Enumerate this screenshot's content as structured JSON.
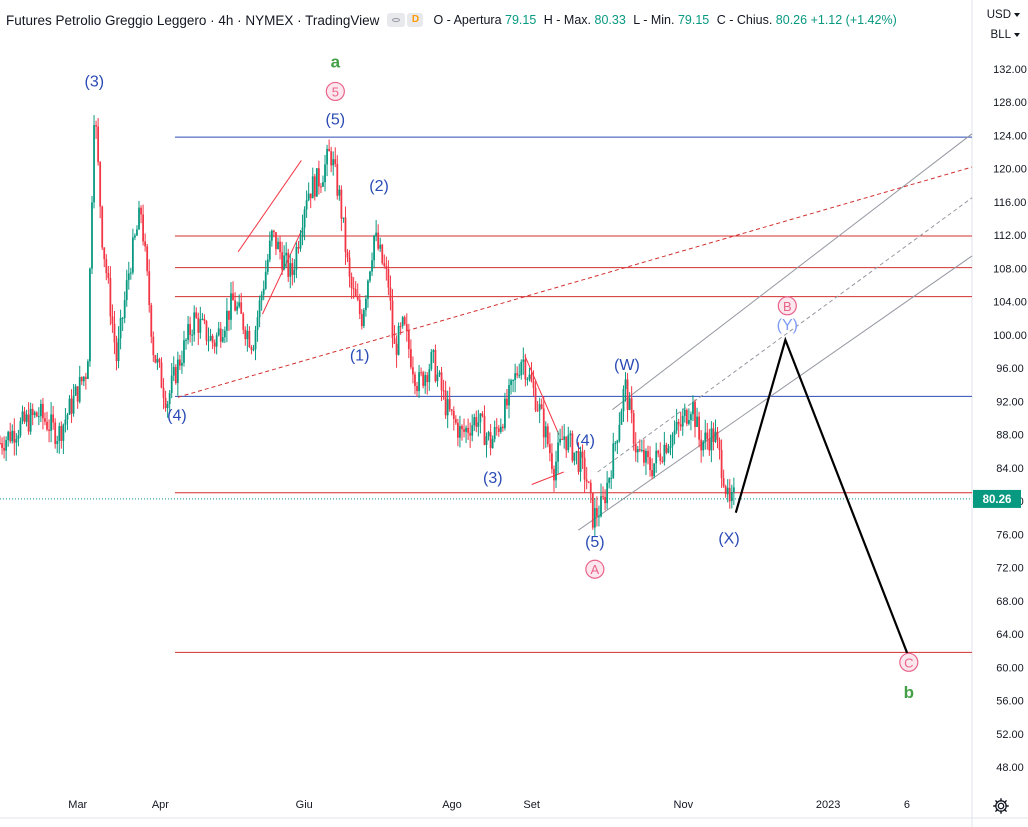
{
  "header": {
    "title": "Futures Petrolio Greggio Leggero · 4h · NYMEX · TradingView",
    "d_badge": "D",
    "open_label": "O - Apertura",
    "open_value": "79.15",
    "high_label": "H - Max.",
    "high_value": "80.33",
    "low_label": "L - Min.",
    "low_value": "79.15",
    "close_label": "C - Chius.",
    "close_value": "80.26",
    "change": "+1.12 (+1.42%)"
  },
  "scale": {
    "currency": "USD",
    "unit": "BLL"
  },
  "colors": {
    "up": "#089981",
    "down": "#f23645",
    "blue_label": "#2a4bb5",
    "pink_label": "#e8638a",
    "green_label": "#43a047",
    "price_badge": "#089981"
  },
  "icons": {
    "settings": "gear-icon",
    "visibility": "eye-icon"
  },
  "chart_data": {
    "type": "candlestick",
    "timeframe": "4h",
    "y_axis": {
      "min": 44,
      "max": 136,
      "ticks": [
        132,
        128,
        124,
        120,
        116,
        112,
        108,
        104,
        100,
        96,
        92,
        88,
        84,
        80,
        76,
        72,
        68,
        64,
        60,
        56,
        52,
        48
      ]
    },
    "x_axis": {
      "months": [
        {
          "label": "Mar",
          "x": 0.08
        },
        {
          "label": "Apr",
          "x": 0.165
        },
        {
          "label": "Giu",
          "x": 0.313
        },
        {
          "label": "Ago",
          "x": 0.465
        },
        {
          "label": "Set",
          "x": 0.547
        },
        {
          "label": "Nov",
          "x": 0.703
        },
        {
          "label": "2023",
          "x": 0.852
        },
        {
          "label": "6",
          "x": 0.933
        }
      ]
    },
    "last_price": 80.26,
    "price_path": [
      [
        0.0,
        87
      ],
      [
        0.02,
        89
      ],
      [
        0.04,
        90.5
      ],
      [
        0.06,
        88
      ],
      [
        0.075,
        92
      ],
      [
        0.09,
        96
      ],
      [
        0.097,
        128
      ],
      [
        0.105,
        112
      ],
      [
        0.12,
        97
      ],
      [
        0.133,
        108
      ],
      [
        0.145,
        115
      ],
      [
        0.158,
        98
      ],
      [
        0.172,
        92
      ],
      [
        0.182,
        96
      ],
      [
        0.2,
        102
      ],
      [
        0.22,
        99
      ],
      [
        0.24,
        104
      ],
      [
        0.26,
        99
      ],
      [
        0.28,
        112
      ],
      [
        0.3,
        107
      ],
      [
        0.315,
        117
      ],
      [
        0.33,
        119
      ],
      [
        0.34,
        122
      ],
      [
        0.35,
        116
      ],
      [
        0.36,
        106
      ],
      [
        0.372,
        102
      ],
      [
        0.385,
        112
      ],
      [
        0.4,
        106
      ],
      [
        0.405,
        98
      ],
      [
        0.415,
        101
      ],
      [
        0.43,
        94
      ],
      [
        0.445,
        97
      ],
      [
        0.46,
        91
      ],
      [
        0.475,
        88
      ],
      [
        0.49,
        90
      ],
      [
        0.505,
        87
      ],
      [
        0.52,
        91
      ],
      [
        0.537,
        97.5
      ],
      [
        0.555,
        91
      ],
      [
        0.57,
        84
      ],
      [
        0.58,
        88
      ],
      [
        0.595,
        85
      ],
      [
        0.603,
        83
      ],
      [
        0.61,
        78
      ],
      [
        0.62,
        79.5
      ],
      [
        0.63,
        85
      ],
      [
        0.643,
        94
      ],
      [
        0.655,
        86
      ],
      [
        0.67,
        84
      ],
      [
        0.685,
        87
      ],
      [
        0.7,
        89
      ],
      [
        0.712,
        92
      ],
      [
        0.72,
        87
      ],
      [
        0.735,
        88
      ],
      [
        0.745,
        83
      ],
      [
        0.75,
        79
      ],
      [
        0.755,
        80.26
      ]
    ],
    "horizontal_lines": [
      {
        "price": 123.8,
        "color": "#2a4bb5",
        "x_start": 0.18
      },
      {
        "price": 111.9,
        "color": "#d32f2f",
        "x_start": 0.18
      },
      {
        "price": 108.1,
        "color": "#d32f2f",
        "x_start": 0.18
      },
      {
        "price": 104.6,
        "color": "#d32f2f",
        "x_start": 0.18
      },
      {
        "price": 92.6,
        "color": "#2a4bb5",
        "x_start": 0.18
      },
      {
        "price": 81.0,
        "color": "#d32f2f",
        "x_start": 0.18
      },
      {
        "price": 61.8,
        "color": "#d32f2f",
        "x_start": 0.18
      }
    ],
    "projection": [
      [
        0.757,
        78.6
      ],
      [
        0.808,
        99.4
      ],
      [
        0.935,
        61.2
      ]
    ],
    "labels": [
      {
        "text": "(3)",
        "x": 0.097,
        "price": 130.5,
        "style": "blue"
      },
      {
        "text": "a",
        "x": 0.345,
        "price": 132.8,
        "style": "green"
      },
      {
        "text": "5",
        "x": 0.345,
        "price": 129.3,
        "style": "pink-circle"
      },
      {
        "text": "(5)",
        "x": 0.345,
        "price": 125.9,
        "style": "blue"
      },
      {
        "text": "(2)",
        "x": 0.39,
        "price": 117.9,
        "style": "blue"
      },
      {
        "text": "(1)",
        "x": 0.37,
        "price": 97.5,
        "style": "blue"
      },
      {
        "text": "(4)",
        "x": 0.182,
        "price": 90.3,
        "style": "blue"
      },
      {
        "text": "(W)",
        "x": 0.645,
        "price": 96.4,
        "style": "blue"
      },
      {
        "text": "(4)",
        "x": 0.602,
        "price": 87.3,
        "style": "blue"
      },
      {
        "text": "(3)",
        "x": 0.507,
        "price": 82.8,
        "style": "blue"
      },
      {
        "text": "(5)",
        "x": 0.612,
        "price": 75.1,
        "style": "blue"
      },
      {
        "text": "A",
        "x": 0.612,
        "price": 71.8,
        "style": "pink-circle"
      },
      {
        "text": "(X)",
        "x": 0.75,
        "price": 75.5,
        "style": "blue"
      },
      {
        "text": "B",
        "x": 0.81,
        "price": 103.5,
        "style": "pink-circle"
      },
      {
        "text": "(Y)",
        "x": 0.81,
        "price": 101.2,
        "style": "blue-light"
      },
      {
        "text": "C",
        "x": 0.935,
        "price": 60.6,
        "style": "pink-circle"
      },
      {
        "text": "b",
        "x": 0.935,
        "price": 56.9,
        "style": "green"
      }
    ]
  }
}
